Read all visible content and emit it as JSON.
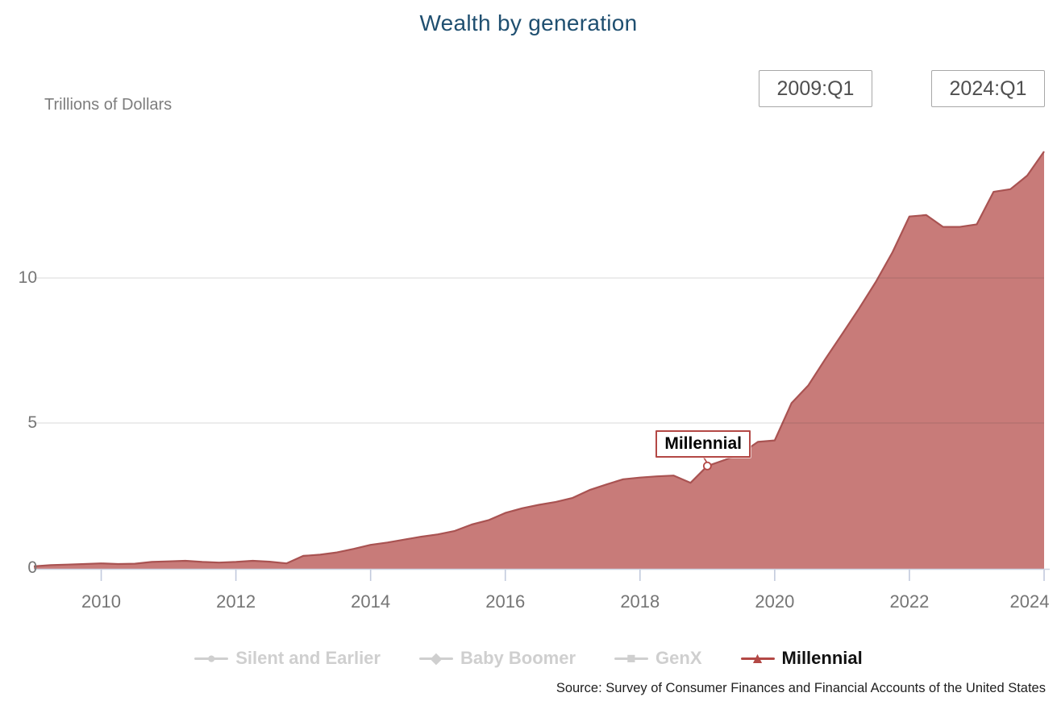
{
  "header": {
    "title": "Wealth by generation",
    "units_label": "Trillions of Dollars"
  },
  "range_selector": {
    "start": "2009:Q1",
    "end": "2024:Q1"
  },
  "annotation": {
    "label": "Millennial",
    "point_quarter": "2019:Q1",
    "point_index": 40,
    "point_value": 3.52
  },
  "legend": {
    "items": [
      {
        "label": "Silent and Earlier",
        "marker": "circle-icon",
        "marker_glyph": "●",
        "enabled": false
      },
      {
        "label": "Baby Boomer",
        "marker": "diamond-icon",
        "marker_glyph": "◆",
        "enabled": false
      },
      {
        "label": "GenX",
        "marker": "square-icon",
        "marker_glyph": "■",
        "enabled": false
      },
      {
        "label": "Millennial",
        "marker": "triangle-icon",
        "marker_glyph": "▲",
        "enabled": true
      }
    ]
  },
  "footer": {
    "source": "Source: Survey of Consumer Finances and Financial Accounts of the United States"
  },
  "colors": {
    "title_text": "#1f4f70",
    "series": "#b34845",
    "series_line": "#a95352",
    "area_fill": "#c97272",
    "disabled_legend": "#cfcfcf",
    "axis_tick": "#c2cadd",
    "gridline": "#dddddd"
  },
  "chart_data": {
    "type": "area",
    "title": "Wealth by generation",
    "ylabel": "Trillions of Dollars",
    "series_name": "Millennial",
    "frequency": "quarterly",
    "x_start": "2009:Q1",
    "x_end": "2024:Q1",
    "x_tick_years": [
      2010,
      2012,
      2014,
      2016,
      2018,
      2020,
      2022,
      2024
    ],
    "y_ticks": [
      0,
      5,
      10
    ],
    "ylim": [
      0,
      15
    ],
    "grid": "horizontal-only",
    "legend_position": "bottom",
    "hidden_series": [
      "Silent and Earlier",
      "Baby Boomer",
      "GenX"
    ],
    "values": [
      0.06,
      0.1,
      0.12,
      0.14,
      0.16,
      0.14,
      0.15,
      0.21,
      0.23,
      0.25,
      0.21,
      0.19,
      0.21,
      0.25,
      0.22,
      0.16,
      0.42,
      0.46,
      0.54,
      0.66,
      0.8,
      0.88,
      0.98,
      1.08,
      1.16,
      1.28,
      1.5,
      1.65,
      1.9,
      2.06,
      2.18,
      2.28,
      2.42,
      2.69,
      2.88,
      3.06,
      3.12,
      3.16,
      3.19,
      2.94,
      3.52,
      3.72,
      3.95,
      4.35,
      4.4,
      5.69,
      6.3,
      7.2,
      8.06,
      8.94,
      9.86,
      10.89,
      12.12,
      12.17,
      11.76,
      11.76,
      11.85,
      12.97,
      13.06,
      13.53,
      14.36
    ]
  }
}
